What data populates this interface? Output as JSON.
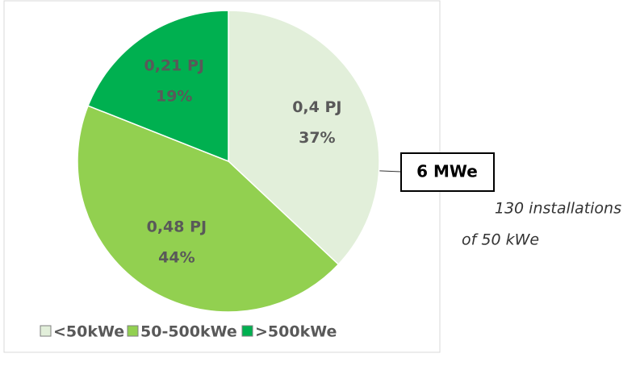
{
  "chart_data": {
    "type": "pie",
    "categories": [
      "<50kWe",
      "50-500kWe",
      ">500kWe"
    ],
    "values": [
      37,
      44,
      19
    ],
    "value_labels": [
      "37%",
      "44%",
      "19%"
    ],
    "energy_labels": [
      "0,4 PJ",
      "0,48 PJ",
      "0,21 PJ"
    ],
    "colors": [
      "#e2efda",
      "#92d050",
      "#00b050"
    ],
    "annotation": {
      "title": "6 MWe",
      "lines": [
        "130 installations",
        "of 50 kWe"
      ]
    },
    "legend": "bottom"
  }
}
